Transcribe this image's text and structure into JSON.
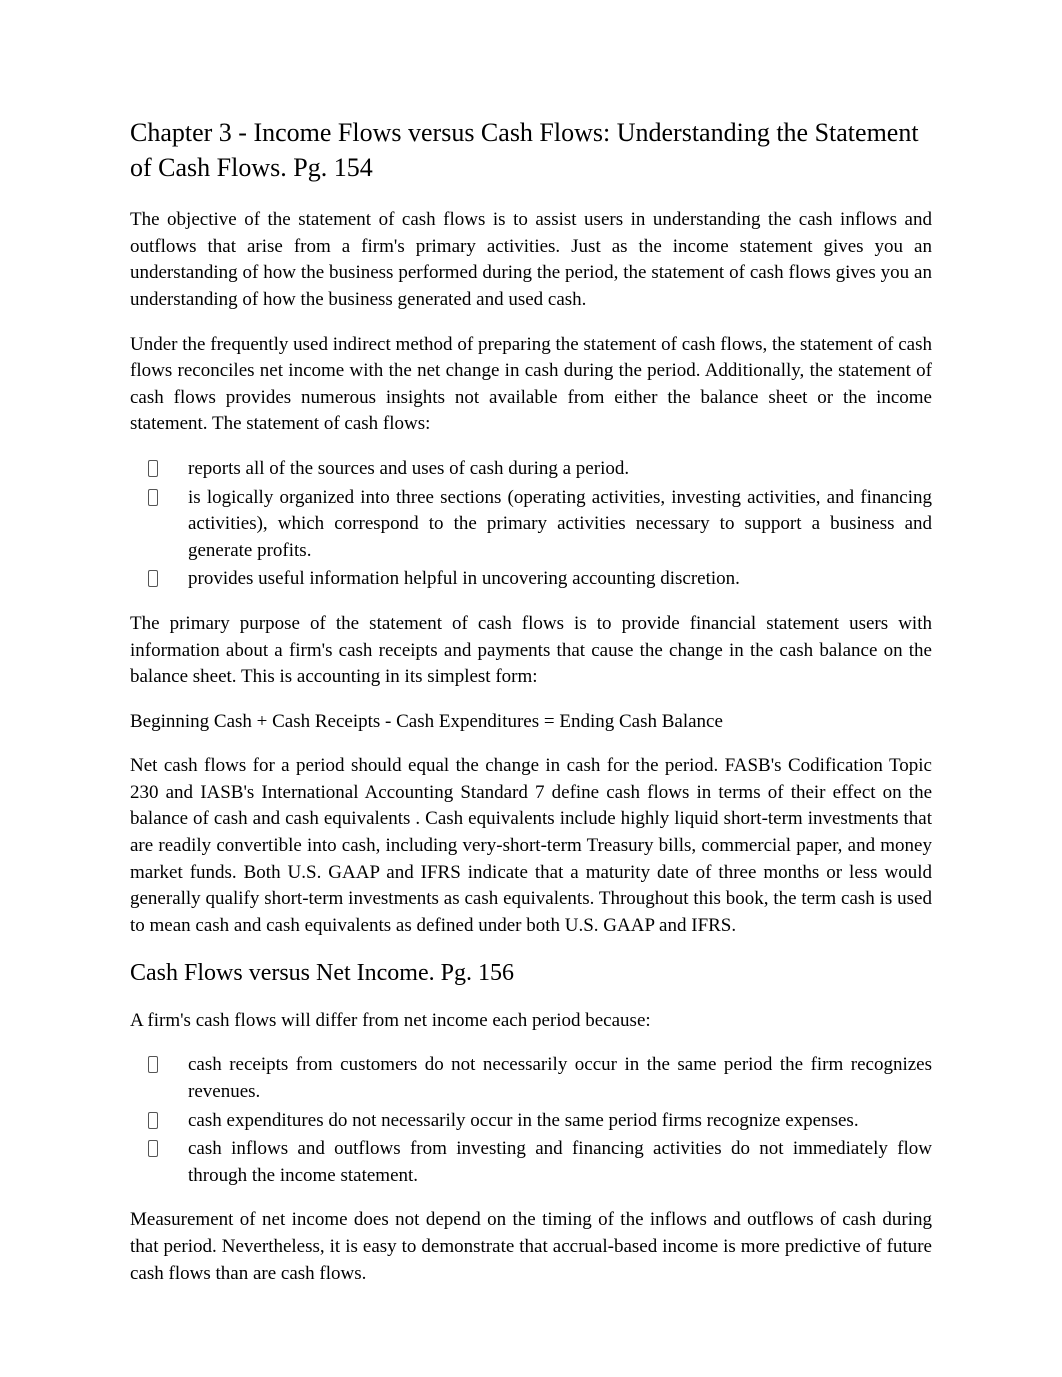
{
  "title": "Chapter 3 - Income Flows versus Cash Flows: Understanding the Statement of Cash Flows. Pg. 154",
  "para1": "The objective of the statement of cash flows is to assist users in understanding the cash inflows and outflows that arise from a firm's primary activities. Just as the income statement gives you an understanding of how the business performed during the period, the statement of cash flows gives you an understanding of how the business generated and used cash.",
  "para2": "Under the frequently used indirect method of preparing the statement of cash flows, the statement of cash flows reconciles net income with the net change in cash during the period. Additionally, the statement of cash flows provides numerous insights not available from either the balance sheet or the income statement. The statement of cash flows:",
  "list1": [
    "reports all of the sources and uses of cash during a period.",
    "is logically organized into three sections (operating activities, investing activities, and financing activities), which correspond to the primary activities necessary to support a business and generate profits.",
    "provides useful information helpful in uncovering accounting discretion."
  ],
  "para3": "The primary purpose of the statement of cash flows is to provide financial statement users with information about a firm's cash receipts and payments that cause the change in the cash balance on the balance sheet. This is accounting in its simplest form:",
  "para4": "Beginning Cash + Cash Receipts - Cash Expenditures = Ending Cash Balance",
  "para5": "Net cash flows for a period should equal the change in cash for the period.  FASB's Codification Topic 230 and IASB's International Accounting Standard 7  define cash flows in terms of their effect on the balance of cash and cash equivalents . Cash equivalents include highly liquid short-term investments that are readily convertible into cash, including very-short-term Treasury bills, commercial paper, and money market funds. Both U.S. GAAP and IFRS indicate that a maturity date of three months or less would generally qualify short-term investments as cash equivalents. Throughout this book, the term cash is used to mean cash and cash equivalents as defined under both U.S. GAAP and IFRS.",
  "subtitle": "Cash Flows versus Net Income. Pg. 156",
  "para6": "A firm's cash flows will differ from net income each period because:",
  "list2": [
    "cash receipts from customers do not necessarily occur in the same period the firm recognizes revenues.",
    "cash expenditures do not necessarily occur in the same period firms recognize expenses.",
    "cash inflows and outflows from investing and financing activities do not immediately flow through the income statement."
  ],
  "para7": "Measurement of net income does not depend on the timing of the inflows and outflows of cash during that period. Nevertheless, it is easy to demonstrate that accrual-based income is more predictive of future cash flows than are cash flows."
}
